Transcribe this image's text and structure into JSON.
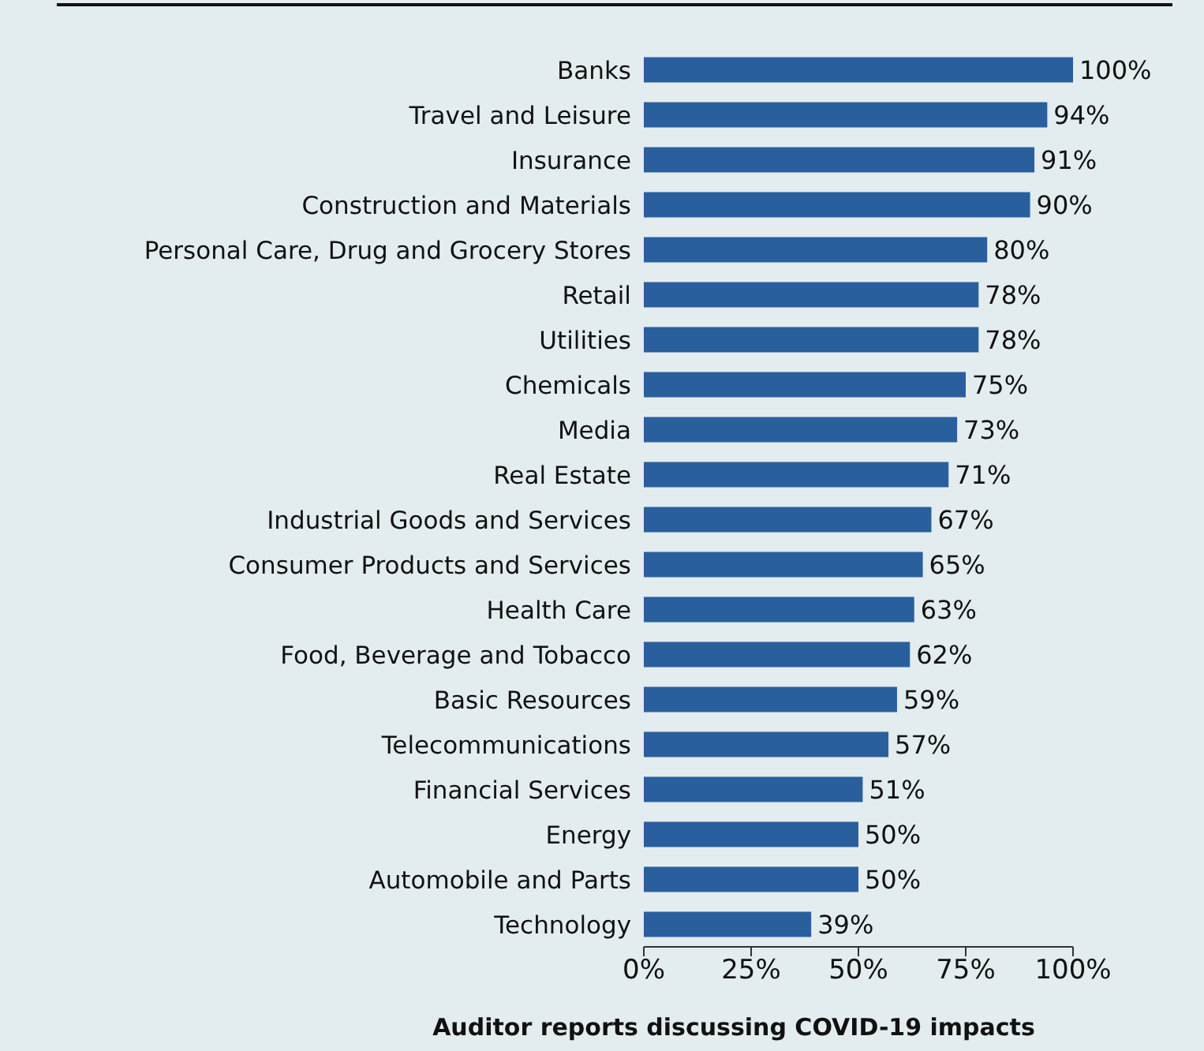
{
  "chart_data": {
    "type": "bar",
    "orientation": "horizontal",
    "xlabel": "Auditor reports discussing COVID-19 impacts",
    "categories": [
      "Banks",
      "Travel and Leisure",
      "Insurance",
      "Construction and Materials",
      "Personal Care, Drug and Grocery Stores",
      "Retail",
      "Utilities",
      "Chemicals",
      "Media",
      "Real Estate",
      "Industrial Goods and Services",
      "Consumer Products and Services",
      "Health Care",
      "Food, Beverage and Tobacco",
      "Basic Resources",
      "Telecommunications",
      "Financial Services",
      "Energy",
      "Automobile and Parts",
      "Technology"
    ],
    "values": [
      100,
      94,
      91,
      90,
      80,
      78,
      78,
      75,
      73,
      71,
      67,
      65,
      63,
      62,
      59,
      57,
      51,
      50,
      50,
      39
    ],
    "value_labels": [
      "100%",
      "94%",
      "91%",
      "90%",
      "80%",
      "78%",
      "78%",
      "75%",
      "73%",
      "71%",
      "67%",
      "65%",
      "63%",
      "62%",
      "59%",
      "57%",
      "51%",
      "50%",
      "50%",
      "39%"
    ],
    "color": "#2a5f9e",
    "xlim": [
      0,
      100
    ],
    "xticks": [
      {
        "value": 0,
        "label": "0%"
      },
      {
        "value": 25,
        "label": "25%"
      },
      {
        "value": 50,
        "label": "50%"
      },
      {
        "value": 75,
        "label": "75%"
      },
      {
        "value": 100,
        "label": "100%"
      }
    ],
    "grid": false,
    "legend": false
  }
}
